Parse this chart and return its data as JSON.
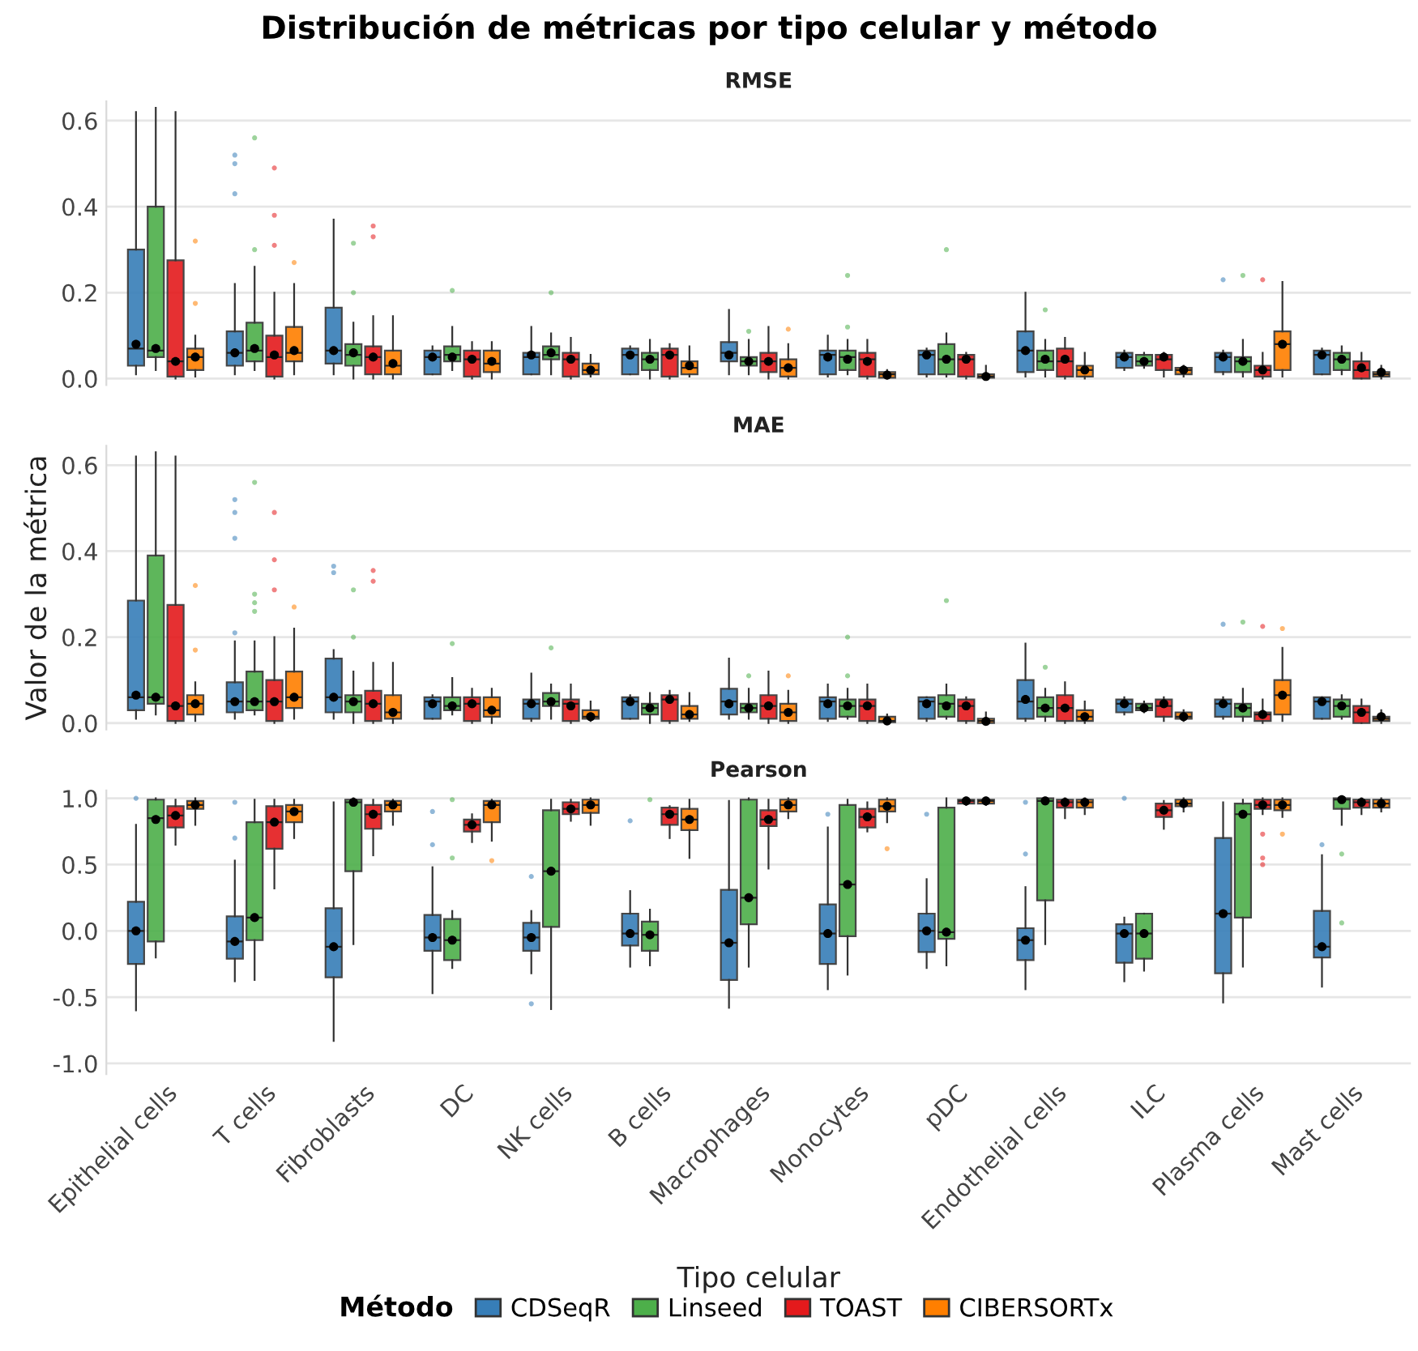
{
  "chart_data": [
    {
      "type": "box",
      "title": "Distribución de métricas por tipo celular y método",
      "subtitle": "RMSE",
      "categories": [
        null,
        null,
        null,
        null,
        null,
        null,
        null,
        null,
        null,
        null,
        null,
        null,
        null
      ],
      "ylim": [
        -0.015,
        0.645
      ],
      "yticks": [
        {
          "value": 0,
          "label": "0.0"
        },
        {
          "value": 0.2,
          "label": "0.2"
        },
        {
          "value": 0.4,
          "label": "0.4"
        },
        {
          "value": 0.6,
          "label": "0.6"
        }
      ],
      "grid": "y",
      "tick_labels": "y",
      "series": [
        {
          "color": "#377eb8",
          "boxes": [
            {
              "low": 0.01,
              "q1": 0.03,
              "median": 0.07,
              "q3": 0.3,
              "high": 0.62,
              "mean": 0.08
            },
            {
              "low": 0.01,
              "q1": 0.03,
              "median": 0.06,
              "q3": 0.11,
              "high": 0.22,
              "mean": 0.06,
              "outliers": [
                0.43,
                0.5,
                0.52
              ]
            },
            {
              "low": 0.01,
              "q1": 0.035,
              "median": 0.065,
              "q3": 0.165,
              "high": 0.37,
              "mean": 0.065
            },
            {
              "low": 0.01,
              "q1": 0.01,
              "median": 0.05,
              "q3": 0.065,
              "high": 0.075,
              "mean": 0.05
            },
            {
              "low": 0.01,
              "q1": 0.01,
              "median": 0.05,
              "q3": 0.06,
              "high": 0.12,
              "mean": 0.055
            },
            {
              "low": 0.01,
              "q1": 0.01,
              "median": 0.055,
              "q3": 0.07,
              "high": 0.075,
              "mean": 0.055
            },
            {
              "low": 0.01,
              "q1": 0.04,
              "median": 0.06,
              "q3": 0.085,
              "high": 0.16,
              "mean": 0.055
            },
            {
              "low": 0.005,
              "q1": 0.01,
              "median": 0.055,
              "q3": 0.065,
              "high": 0.1,
              "mean": 0.05
            },
            {
              "low": 0.005,
              "q1": 0.01,
              "median": 0.055,
              "q3": 0.065,
              "high": 0.07,
              "mean": 0.055
            },
            {
              "low": 0.005,
              "q1": 0.015,
              "median": 0.065,
              "q3": 0.11,
              "high": 0.2,
              "mean": 0.065
            },
            {
              "low": 0.02,
              "q1": 0.025,
              "median": 0.05,
              "q3": 0.06,
              "high": 0.065,
              "mean": 0.05
            },
            {
              "low": 0.01,
              "q1": 0.015,
              "median": 0.05,
              "q3": 0.06,
              "high": 0.065,
              "mean": 0.05,
              "outliers": [
                0.23
              ]
            },
            {
              "low": 0.01,
              "q1": 0.01,
              "median": 0.055,
              "q3": 0.065,
              "high": 0.07,
              "mean": 0.055
            }
          ]
        },
        {
          "color": "#4daf4a",
          "boxes": [
            {
              "low": 0.02,
              "q1": 0.05,
              "median": 0.065,
              "q3": 0.4,
              "high": 0.63,
              "mean": 0.07
            },
            {
              "low": 0.02,
              "q1": 0.04,
              "median": 0.065,
              "q3": 0.13,
              "high": 0.26,
              "mean": 0.07,
              "outliers": [
                0.3,
                0.56
              ]
            },
            {
              "low": 0.0,
              "q1": 0.03,
              "median": 0.055,
              "q3": 0.08,
              "high": 0.13,
              "mean": 0.06,
              "outliers": [
                0.2,
                0.315
              ]
            },
            {
              "low": 0.02,
              "q1": 0.04,
              "median": 0.055,
              "q3": 0.075,
              "high": 0.12,
              "mean": 0.05,
              "outliers": [
                0.205
              ]
            },
            {
              "low": 0.01,
              "q1": 0.045,
              "median": 0.055,
              "q3": 0.075,
              "high": 0.105,
              "mean": 0.06,
              "outliers": [
                0.2
              ]
            },
            {
              "low": 0.0,
              "q1": 0.02,
              "median": 0.045,
              "q3": 0.06,
              "high": 0.09,
              "mean": 0.045
            },
            {
              "low": 0.01,
              "q1": 0.03,
              "median": 0.04,
              "q3": 0.05,
              "high": 0.09,
              "mean": 0.04,
              "outliers": [
                0.11
              ]
            },
            {
              "low": 0.01,
              "q1": 0.02,
              "median": 0.05,
              "q3": 0.065,
              "high": 0.09,
              "mean": 0.045,
              "outliers": [
                0.12,
                0.24
              ]
            },
            {
              "low": 0.005,
              "q1": 0.01,
              "median": 0.045,
              "q3": 0.08,
              "high": 0.105,
              "mean": 0.045,
              "outliers": [
                0.3
              ]
            },
            {
              "low": 0.005,
              "q1": 0.02,
              "median": 0.04,
              "q3": 0.065,
              "high": 0.09,
              "mean": 0.045,
              "outliers": [
                0.16
              ]
            },
            {
              "low": 0.025,
              "q1": 0.03,
              "median": 0.04,
              "q3": 0.055,
              "high": 0.06,
              "mean": 0.04
            },
            {
              "low": 0.005,
              "q1": 0.015,
              "median": 0.04,
              "q3": 0.05,
              "high": 0.09,
              "mean": 0.04,
              "outliers": [
                0.24
              ]
            },
            {
              "low": 0.01,
              "q1": 0.02,
              "median": 0.045,
              "q3": 0.06,
              "high": 0.075,
              "mean": 0.045
            }
          ]
        },
        {
          "color": "#e41a1c",
          "boxes": [
            {
              "low": 0.0,
              "q1": 0.005,
              "median": 0.04,
              "q3": 0.275,
              "high": 0.62,
              "mean": 0.04
            },
            {
              "low": 0.0,
              "q1": 0.005,
              "median": 0.05,
              "q3": 0.1,
              "high": 0.2,
              "mean": 0.055,
              "outliers": [
                0.31,
                0.38,
                0.49
              ]
            },
            {
              "low": 0.0,
              "q1": 0.01,
              "median": 0.05,
              "q3": 0.075,
              "high": 0.145,
              "mean": 0.05,
              "outliers": [
                0.33,
                0.355
              ]
            },
            {
              "low": 0.0,
              "q1": 0.005,
              "median": 0.045,
              "q3": 0.065,
              "high": 0.085,
              "mean": 0.045
            },
            {
              "low": 0.0,
              "q1": 0.005,
              "median": 0.045,
              "q3": 0.06,
              "high": 0.095,
              "mean": 0.045
            },
            {
              "low": 0.0,
              "q1": 0.005,
              "median": 0.055,
              "q3": 0.07,
              "high": 0.08,
              "mean": 0.055
            },
            {
              "low": 0.0,
              "q1": 0.015,
              "median": 0.04,
              "q3": 0.06,
              "high": 0.12,
              "mean": 0.04
            },
            {
              "low": 0.0,
              "q1": 0.005,
              "median": 0.045,
              "q3": 0.06,
              "high": 0.09,
              "mean": 0.04
            },
            {
              "low": 0.0,
              "q1": 0.005,
              "median": 0.045,
              "q3": 0.055,
              "high": 0.06,
              "mean": 0.045
            },
            {
              "low": 0.0,
              "q1": 0.005,
              "median": 0.04,
              "q3": 0.07,
              "high": 0.095,
              "mean": 0.045
            },
            {
              "low": 0.005,
              "q1": 0.02,
              "median": 0.045,
              "q3": 0.055,
              "high": 0.06,
              "mean": 0.05
            },
            {
              "low": 0.0,
              "q1": 0.005,
              "median": 0.02,
              "q3": 0.03,
              "high": 0.06,
              "mean": 0.02,
              "outliers": [
                0.23
              ]
            },
            {
              "low": 0.0,
              "q1": 0.0,
              "median": 0.02,
              "q3": 0.04,
              "high": 0.06,
              "mean": 0.025
            }
          ]
        },
        {
          "color": "#ff7f00",
          "boxes": [
            {
              "low": 0.005,
              "q1": 0.02,
              "median": 0.05,
              "q3": 0.07,
              "high": 0.1,
              "mean": 0.05,
              "outliers": [
                0.175,
                0.32
              ]
            },
            {
              "low": 0.01,
              "q1": 0.04,
              "median": 0.06,
              "q3": 0.12,
              "high": 0.22,
              "mean": 0.065,
              "outliers": [
                0.27
              ]
            },
            {
              "low": 0.0,
              "q1": 0.01,
              "median": 0.03,
              "q3": 0.065,
              "high": 0.145,
              "mean": 0.035
            },
            {
              "low": 0.0,
              "q1": 0.015,
              "median": 0.035,
              "q3": 0.065,
              "high": 0.085,
              "mean": 0.04
            },
            {
              "low": 0.005,
              "q1": 0.01,
              "median": 0.02,
              "q3": 0.035,
              "high": 0.055,
              "mean": 0.02
            },
            {
              "low": 0.005,
              "q1": 0.01,
              "median": 0.025,
              "q3": 0.04,
              "high": 0.075,
              "mean": 0.03
            },
            {
              "low": 0.0,
              "q1": 0.005,
              "median": 0.025,
              "q3": 0.045,
              "high": 0.08,
              "mean": 0.025,
              "outliers": [
                0.115
              ]
            },
            {
              "low": 0.0,
              "q1": 0.002,
              "median": 0.01,
              "q3": 0.015,
              "high": 0.02,
              "mean": 0.008
            },
            {
              "low": 0.0,
              "q1": 0.002,
              "median": 0.005,
              "q3": 0.01,
              "high": 0.03,
              "mean": 0.005
            },
            {
              "low": 0.0,
              "q1": 0.005,
              "median": 0.02,
              "q3": 0.03,
              "high": 0.06,
              "mean": 0.02
            },
            {
              "low": 0.005,
              "q1": 0.01,
              "median": 0.02,
              "q3": 0.025,
              "high": 0.03,
              "mean": 0.02
            },
            {
              "low": 0.005,
              "q1": 0.02,
              "median": 0.08,
              "q3": 0.11,
              "high": 0.225,
              "mean": 0.08
            },
            {
              "low": 0.0,
              "q1": 0.005,
              "median": 0.01,
              "q3": 0.015,
              "high": 0.03,
              "mean": 0.015
            }
          ]
        }
      ]
    },
    {
      "type": "box",
      "subtitle": "MAE",
      "ylabel": "Valor de la métrica",
      "categories": [
        null,
        null,
        null,
        null,
        null,
        null,
        null,
        null,
        null,
        null,
        null,
        null,
        null
      ],
      "ylim": [
        -0.015,
        0.645
      ],
      "yticks": [
        {
          "value": 0,
          "label": "0.0"
        },
        {
          "value": 0.2,
          "label": "0.2"
        },
        {
          "value": 0.4,
          "label": "0.4"
        },
        {
          "value": 0.6,
          "label": "0.6"
        }
      ],
      "grid": "y",
      "tick_labels": "y",
      "series": [
        {
          "color": "#377eb8",
          "boxes": [
            {
              "low": 0.01,
              "q1": 0.03,
              "median": 0.06,
              "q3": 0.285,
              "high": 0.62,
              "mean": 0.065
            },
            {
              "low": 0.01,
              "q1": 0.025,
              "median": 0.05,
              "q3": 0.095,
              "high": 0.19,
              "mean": 0.05,
              "outliers": [
                0.21,
                0.43,
                0.49,
                0.52
              ]
            },
            {
              "low": 0.01,
              "q1": 0.025,
              "median": 0.06,
              "q3": 0.15,
              "high": 0.17,
              "mean": 0.06,
              "outliers": [
                0.35,
                0.365
              ]
            },
            {
              "low": 0.01,
              "q1": 0.01,
              "median": 0.05,
              "q3": 0.06,
              "high": 0.065,
              "mean": 0.045
            },
            {
              "low": 0.005,
              "q1": 0.01,
              "median": 0.045,
              "q3": 0.055,
              "high": 0.115,
              "mean": 0.045
            },
            {
              "low": 0.01,
              "q1": 0.01,
              "median": 0.05,
              "q3": 0.06,
              "high": 0.065,
              "mean": 0.05
            },
            {
              "low": 0.01,
              "q1": 0.02,
              "median": 0.05,
              "q3": 0.08,
              "high": 0.15,
              "mean": 0.045
            },
            {
              "low": 0.005,
              "q1": 0.01,
              "median": 0.05,
              "q3": 0.06,
              "high": 0.09,
              "mean": 0.045
            },
            {
              "low": 0.005,
              "q1": 0.01,
              "median": 0.05,
              "q3": 0.06,
              "high": 0.06,
              "mean": 0.045
            },
            {
              "low": 0.005,
              "q1": 0.01,
              "median": 0.05,
              "q3": 0.1,
              "high": 0.185,
              "mean": 0.055
            },
            {
              "low": 0.02,
              "q1": 0.025,
              "median": 0.045,
              "q3": 0.055,
              "high": 0.06,
              "mean": 0.045
            },
            {
              "low": 0.01,
              "q1": 0.015,
              "median": 0.045,
              "q3": 0.055,
              "high": 0.06,
              "mean": 0.045,
              "outliers": [
                0.23
              ]
            },
            {
              "low": 0.01,
              "q1": 0.01,
              "median": 0.05,
              "q3": 0.06,
              "high": 0.06,
              "mean": 0.05
            }
          ]
        },
        {
          "color": "#4daf4a",
          "boxes": [
            {
              "low": 0.02,
              "q1": 0.045,
              "median": 0.06,
              "q3": 0.39,
              "high": 0.63,
              "mean": 0.06
            },
            {
              "low": 0.02,
              "q1": 0.03,
              "median": 0.05,
              "q3": 0.12,
              "high": 0.19,
              "mean": 0.05,
              "outliers": [
                0.26,
                0.28,
                0.3,
                0.56
              ]
            },
            {
              "low": 0.0,
              "q1": 0.025,
              "median": 0.05,
              "q3": 0.065,
              "high": 0.12,
              "mean": 0.05,
              "outliers": [
                0.2,
                0.31
              ]
            },
            {
              "low": 0.02,
              "q1": 0.03,
              "median": 0.04,
              "q3": 0.06,
              "high": 0.105,
              "mean": 0.04,
              "outliers": [
                0.185
              ]
            },
            {
              "low": 0.01,
              "q1": 0.04,
              "median": 0.05,
              "q3": 0.07,
              "high": 0.09,
              "mean": 0.05,
              "outliers": [
                0.175
              ]
            },
            {
              "low": 0.0,
              "q1": 0.02,
              "median": 0.035,
              "q3": 0.045,
              "high": 0.07,
              "mean": 0.035
            },
            {
              "low": 0.01,
              "q1": 0.025,
              "median": 0.035,
              "q3": 0.045,
              "high": 0.08,
              "mean": 0.035,
              "outliers": [
                0.11
              ]
            },
            {
              "low": 0.01,
              "q1": 0.015,
              "median": 0.04,
              "q3": 0.055,
              "high": 0.08,
              "mean": 0.04,
              "outliers": [
                0.11,
                0.2
              ]
            },
            {
              "low": 0.01,
              "q1": 0.015,
              "median": 0.045,
              "q3": 0.065,
              "high": 0.09,
              "mean": 0.04,
              "outliers": [
                0.285
              ]
            },
            {
              "low": 0.005,
              "q1": 0.015,
              "median": 0.035,
              "q3": 0.06,
              "high": 0.08,
              "mean": 0.035,
              "outliers": [
                0.13
              ]
            },
            {
              "low": 0.025,
              "q1": 0.03,
              "median": 0.035,
              "q3": 0.045,
              "high": 0.05,
              "mean": 0.035
            },
            {
              "low": 0.005,
              "q1": 0.015,
              "median": 0.035,
              "q3": 0.045,
              "high": 0.08,
              "mean": 0.035,
              "outliers": [
                0.235
              ]
            },
            {
              "low": 0.01,
              "q1": 0.015,
              "median": 0.04,
              "q3": 0.055,
              "high": 0.065,
              "mean": 0.04
            }
          ]
        },
        {
          "color": "#e41a1c",
          "boxes": [
            {
              "low": 0.0,
              "q1": 0.005,
              "median": 0.04,
              "q3": 0.275,
              "high": 0.62,
              "mean": 0.04
            },
            {
              "low": 0.0,
              "q1": 0.005,
              "median": 0.05,
              "q3": 0.1,
              "high": 0.2,
              "mean": 0.05,
              "outliers": [
                0.31,
                0.38,
                0.49
              ]
            },
            {
              "low": 0.0,
              "q1": 0.005,
              "median": 0.045,
              "q3": 0.075,
              "high": 0.14,
              "mean": 0.045,
              "outliers": [
                0.33,
                0.355
              ]
            },
            {
              "low": 0.0,
              "q1": 0.005,
              "median": 0.045,
              "q3": 0.06,
              "high": 0.08,
              "mean": 0.045
            },
            {
              "low": 0.0,
              "q1": 0.005,
              "median": 0.045,
              "q3": 0.055,
              "high": 0.09,
              "mean": 0.04
            },
            {
              "low": 0.0,
              "q1": 0.005,
              "median": 0.055,
              "q3": 0.065,
              "high": 0.075,
              "mean": 0.055
            },
            {
              "low": 0.0,
              "q1": 0.01,
              "median": 0.04,
              "q3": 0.065,
              "high": 0.12,
              "mean": 0.04
            },
            {
              "low": 0.0,
              "q1": 0.005,
              "median": 0.04,
              "q3": 0.055,
              "high": 0.09,
              "mean": 0.04
            },
            {
              "low": 0.0,
              "q1": 0.005,
              "median": 0.04,
              "q3": 0.055,
              "high": 0.06,
              "mean": 0.04
            },
            {
              "low": 0.0,
              "q1": 0.005,
              "median": 0.035,
              "q3": 0.065,
              "high": 0.095,
              "mean": 0.035
            },
            {
              "low": 0.005,
              "q1": 0.015,
              "median": 0.04,
              "q3": 0.055,
              "high": 0.06,
              "mean": 0.045
            },
            {
              "low": 0.0,
              "q1": 0.005,
              "median": 0.02,
              "q3": 0.025,
              "high": 0.055,
              "mean": 0.02,
              "outliers": [
                0.225
              ]
            },
            {
              "low": 0.0,
              "q1": 0.0,
              "median": 0.025,
              "q3": 0.04,
              "high": 0.055,
              "mean": 0.025
            }
          ]
        },
        {
          "color": "#ff7f00",
          "boxes": [
            {
              "low": 0.005,
              "q1": 0.02,
              "median": 0.045,
              "q3": 0.065,
              "high": 0.095,
              "mean": 0.045,
              "outliers": [
                0.17,
                0.32
              ]
            },
            {
              "low": 0.01,
              "q1": 0.035,
              "median": 0.06,
              "q3": 0.12,
              "high": 0.22,
              "mean": 0.06,
              "outliers": [
                0.27
              ]
            },
            {
              "low": 0.0,
              "q1": 0.01,
              "median": 0.025,
              "q3": 0.065,
              "high": 0.14,
              "mean": 0.025
            },
            {
              "low": 0.0,
              "q1": 0.015,
              "median": 0.03,
              "q3": 0.06,
              "high": 0.08,
              "mean": 0.03
            },
            {
              "low": 0.005,
              "q1": 0.01,
              "median": 0.015,
              "q3": 0.03,
              "high": 0.05,
              "mean": 0.015
            },
            {
              "low": 0.005,
              "q1": 0.01,
              "median": 0.02,
              "q3": 0.04,
              "high": 0.07,
              "mean": 0.02
            },
            {
              "low": 0.0,
              "q1": 0.005,
              "median": 0.025,
              "q3": 0.045,
              "high": 0.075,
              "mean": 0.025,
              "outliers": [
                0.11
              ]
            },
            {
              "low": 0.0,
              "q1": 0.002,
              "median": 0.005,
              "q3": 0.015,
              "high": 0.02,
              "mean": 0.005
            },
            {
              "low": 0.0,
              "q1": 0.0,
              "median": 0.005,
              "q3": 0.01,
              "high": 0.025,
              "mean": 0.004
            },
            {
              "low": 0.0,
              "q1": 0.005,
              "median": 0.015,
              "q3": 0.03,
              "high": 0.05,
              "mean": 0.015
            },
            {
              "low": 0.005,
              "q1": 0.01,
              "median": 0.015,
              "q3": 0.025,
              "high": 0.03,
              "mean": 0.015
            },
            {
              "low": 0.005,
              "q1": 0.02,
              "median": 0.065,
              "q3": 0.1,
              "high": 0.175,
              "mean": 0.065,
              "outliers": [
                0.22
              ]
            },
            {
              "low": 0.0,
              "q1": 0.005,
              "median": 0.01,
              "q3": 0.015,
              "high": 0.03,
              "mean": 0.015
            }
          ]
        }
      ]
    },
    {
      "type": "box",
      "subtitle": "Pearson",
      "xlabel": "Tipo celular",
      "legend_title": "Método",
      "legend": "bottom",
      "categories": [
        "Epithelial cells",
        "T cells",
        "Fibroblasts",
        "DC",
        "NK cells",
        "B cells",
        "Macrophages",
        "Monocytes",
        "pDC",
        "Endothelial cells",
        "ILC",
        "Plasma cells",
        "Mast cells"
      ],
      "ylim": [
        -1.08,
        1.06
      ],
      "yticks": [
        {
          "value": -1,
          "label": "-1.0"
        },
        {
          "value": -0.5,
          "label": "-0.5"
        },
        {
          "value": 0,
          "label": "0.0"
        },
        {
          "value": 0.5,
          "label": "0.5"
        },
        {
          "value": 1,
          "label": "1.0"
        }
      ],
      "grid": "y",
      "series": [
        {
          "name": "CDSeqR",
          "color": "#377eb8",
          "boxes": [
            {
              "low": -0.6,
              "q1": -0.25,
              "median": 0.0,
              "q3": 0.22,
              "high": 0.8,
              "mean": 0.0,
              "outliers": [
                1.0
              ]
            },
            {
              "low": -0.38,
              "q1": -0.21,
              "median": -0.08,
              "q3": 0.11,
              "high": 0.53,
              "mean": -0.08,
              "outliers": [
                0.7,
                0.97
              ]
            },
            {
              "low": -0.83,
              "q1": -0.35,
              "median": -0.12,
              "q3": 0.17,
              "high": 0.97,
              "mean": -0.12
            },
            {
              "low": -0.47,
              "q1": -0.15,
              "median": -0.05,
              "q3": 0.12,
              "high": 0.48,
              "mean": -0.05,
              "outliers": [
                0.65,
                0.9
              ]
            },
            {
              "low": -0.32,
              "q1": -0.15,
              "median": -0.05,
              "q3": 0.06,
              "high": 0.15,
              "mean": -0.05,
              "outliers": [
                -0.55,
                0.41
              ]
            },
            {
              "low": -0.27,
              "q1": -0.11,
              "median": -0.02,
              "q3": 0.13,
              "high": 0.3,
              "mean": -0.02,
              "outliers": [
                0.83
              ]
            },
            {
              "low": -0.58,
              "q1": -0.37,
              "median": -0.09,
              "q3": 0.31,
              "high": 0.98,
              "mean": -0.09
            },
            {
              "low": -0.44,
              "q1": -0.25,
              "median": -0.02,
              "q3": 0.2,
              "high": 0.78,
              "mean": -0.02,
              "outliers": [
                0.88
              ]
            },
            {
              "low": -0.28,
              "q1": -0.16,
              "median": 0.0,
              "q3": 0.13,
              "high": 0.39,
              "mean": 0.0,
              "outliers": [
                0.88
              ]
            },
            {
              "low": -0.44,
              "q1": -0.22,
              "median": -0.07,
              "q3": 0.02,
              "high": 0.33,
              "mean": -0.07,
              "outliers": [
                0.58,
                0.97
              ]
            },
            {
              "low": -0.38,
              "q1": -0.24,
              "median": -0.02,
              "q3": 0.05,
              "high": 0.1,
              "mean": -0.02,
              "outliers": [
                1.0
              ]
            },
            {
              "low": -0.54,
              "q1": -0.32,
              "median": 0.13,
              "q3": 0.7,
              "high": 0.97,
              "mean": 0.13
            },
            {
              "low": -0.42,
              "q1": -0.2,
              "median": -0.12,
              "q3": 0.15,
              "high": 0.57,
              "mean": -0.12,
              "outliers": [
                0.65
              ]
            }
          ]
        },
        {
          "name": "Linseed",
          "color": "#4daf4a",
          "boxes": [
            {
              "low": -0.2,
              "q1": -0.08,
              "median": 0.85,
              "q3": 0.99,
              "high": 1.0,
              "mean": 0.84
            },
            {
              "low": -0.37,
              "q1": -0.07,
              "median": 0.1,
              "q3": 0.82,
              "high": 0.99,
              "mean": 0.1
            },
            {
              "low": -0.1,
              "q1": 0.45,
              "median": 0.97,
              "q3": 0.99,
              "high": 1.0,
              "mean": 0.97
            },
            {
              "low": -0.28,
              "q1": -0.22,
              "median": -0.07,
              "q3": 0.09,
              "high": 0.15,
              "mean": -0.07,
              "outliers": [
                0.55,
                0.99
              ]
            },
            {
              "low": -0.59,
              "q1": 0.03,
              "median": 0.45,
              "q3": 0.91,
              "high": 0.99,
              "mean": 0.45
            },
            {
              "low": -0.26,
              "q1": -0.15,
              "median": -0.03,
              "q3": 0.07,
              "high": 0.16,
              "mean": -0.03,
              "outliers": [
                0.99
              ]
            },
            {
              "low": -0.27,
              "q1": 0.05,
              "median": 0.25,
              "q3": 0.99,
              "high": 1.0,
              "mean": 0.25
            },
            {
              "low": -0.33,
              "q1": -0.04,
              "median": 0.35,
              "q3": 0.95,
              "high": 0.99,
              "mean": 0.35
            },
            {
              "low": -0.26,
              "q1": -0.06,
              "median": -0.01,
              "q3": 0.93,
              "high": 1.0,
              "mean": -0.01
            },
            {
              "low": -0.1,
              "q1": 0.23,
              "median": 0.98,
              "q3": 1.0,
              "high": 1.0,
              "mean": 0.98
            },
            {
              "low": -0.3,
              "q1": -0.21,
              "median": -0.02,
              "q3": 0.13,
              "high": 0.13,
              "mean": -0.02
            },
            {
              "low": -0.27,
              "q1": 0.1,
              "median": 0.88,
              "q3": 0.96,
              "high": 0.99,
              "mean": 0.88
            },
            {
              "low": 0.8,
              "q1": 0.92,
              "median": 0.99,
              "q3": 1.0,
              "high": 1.0,
              "mean": 0.99,
              "outliers": [
                0.06,
                0.58
              ]
            }
          ]
        },
        {
          "name": "TOAST",
          "color": "#e41a1c",
          "boxes": [
            {
              "low": 0.65,
              "q1": 0.78,
              "median": 0.87,
              "q3": 0.94,
              "high": 0.99,
              "mean": 0.87
            },
            {
              "low": 0.32,
              "q1": 0.62,
              "median": 0.82,
              "q3": 0.94,
              "high": 0.99,
              "mean": 0.82
            },
            {
              "low": 0.57,
              "q1": 0.77,
              "median": 0.88,
              "q3": 0.95,
              "high": 0.99,
              "mean": 0.88
            },
            {
              "low": 0.67,
              "q1": 0.75,
              "median": 0.8,
              "q3": 0.84,
              "high": 0.88,
              "mean": 0.8
            },
            {
              "low": 0.83,
              "q1": 0.88,
              "median": 0.92,
              "q3": 0.97,
              "high": 0.99,
              "mean": 0.92
            },
            {
              "low": 0.7,
              "q1": 0.8,
              "median": 0.88,
              "q3": 0.93,
              "high": 0.94,
              "mean": 0.88
            },
            {
              "low": 0.47,
              "q1": 0.79,
              "median": 0.84,
              "q3": 0.91,
              "high": 0.99,
              "mean": 0.84
            },
            {
              "low": 0.75,
              "q1": 0.78,
              "median": 0.86,
              "q3": 0.92,
              "high": 0.97,
              "mean": 0.86
            },
            {
              "low": 0.95,
              "q1": 0.96,
              "median": 0.98,
              "q3": 0.99,
              "high": 1.0,
              "mean": 0.98
            },
            {
              "low": 0.85,
              "q1": 0.93,
              "median": 0.97,
              "q3": 0.99,
              "high": 1.0,
              "mean": 0.97
            },
            {
              "low": 0.77,
              "q1": 0.86,
              "median": 0.91,
              "q3": 0.96,
              "high": 0.98,
              "mean": 0.91
            },
            {
              "low": 0.88,
              "q1": 0.92,
              "median": 0.95,
              "q3": 0.99,
              "high": 1.0,
              "mean": 0.95,
              "outliers": [
                0.5,
                0.55,
                0.73
              ]
            },
            {
              "low": 0.88,
              "q1": 0.93,
              "median": 0.97,
              "q3": 0.99,
              "high": 1.0,
              "mean": 0.97
            }
          ]
        },
        {
          "name": "CIBERSORTx",
          "color": "#ff7f00",
          "boxes": [
            {
              "low": 0.8,
              "q1": 0.92,
              "median": 0.95,
              "q3": 0.98,
              "high": 1.0,
              "mean": 0.95
            },
            {
              "low": 0.7,
              "q1": 0.82,
              "median": 0.9,
              "q3": 0.95,
              "high": 0.99,
              "mean": 0.9
            },
            {
              "low": 0.8,
              "q1": 0.9,
              "median": 0.95,
              "q3": 0.98,
              "high": 0.99,
              "mean": 0.95
            },
            {
              "low": 0.68,
              "q1": 0.82,
              "median": 0.95,
              "q3": 0.98,
              "high": 0.99,
              "mean": 0.95,
              "outliers": [
                0.53
              ]
            },
            {
              "low": 0.8,
              "q1": 0.89,
              "median": 0.95,
              "q3": 0.99,
              "high": 1.0,
              "mean": 0.95
            },
            {
              "low": 0.55,
              "q1": 0.76,
              "median": 0.84,
              "q3": 0.92,
              "high": 0.99,
              "mean": 0.84
            },
            {
              "low": 0.85,
              "q1": 0.9,
              "median": 0.95,
              "q3": 0.99,
              "high": 1.0,
              "mean": 0.95
            },
            {
              "low": 0.82,
              "q1": 0.9,
              "median": 0.94,
              "q3": 0.99,
              "high": 1.0,
              "mean": 0.94,
              "outliers": [
                0.62
              ]
            },
            {
              "low": 0.95,
              "q1": 0.96,
              "median": 0.98,
              "q3": 0.99,
              "high": 1.0,
              "mean": 0.98
            },
            {
              "low": 0.88,
              "q1": 0.93,
              "median": 0.97,
              "q3": 0.99,
              "high": 1.0,
              "mean": 0.97
            },
            {
              "low": 0.9,
              "q1": 0.94,
              "median": 0.96,
              "q3": 0.99,
              "high": 1.0,
              "mean": 0.96
            },
            {
              "low": 0.86,
              "q1": 0.91,
              "median": 0.95,
              "q3": 0.99,
              "high": 1.0,
              "mean": 0.95,
              "outliers": [
                0.73
              ]
            },
            {
              "low": 0.9,
              "q1": 0.93,
              "median": 0.96,
              "q3": 0.99,
              "high": 1.0,
              "mean": 0.96
            }
          ]
        }
      ]
    }
  ]
}
